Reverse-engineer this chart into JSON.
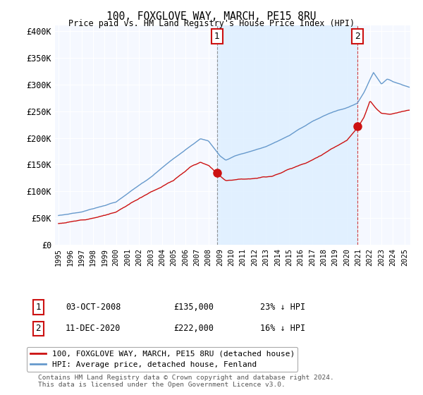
{
  "title": "100, FOXGLOVE WAY, MARCH, PE15 8RU",
  "subtitle": "Price paid vs. HM Land Registry's House Price Index (HPI)",
  "ylabel_ticks": [
    "£0",
    "£50K",
    "£100K",
    "£150K",
    "£200K",
    "£250K",
    "£300K",
    "£350K",
    "£400K"
  ],
  "ytick_values": [
    0,
    50000,
    100000,
    150000,
    200000,
    250000,
    300000,
    350000,
    400000
  ],
  "ylim": [
    0,
    410000
  ],
  "xlim_start": 1994.7,
  "xlim_end": 2025.5,
  "hpi_color": "#6699cc",
  "price_color": "#cc1111",
  "shade_color": "#ddeeff",
  "annotation_box_color": "#cc1111",
  "bg_color": "#f5f8ff",
  "sale1_x": 2008.75,
  "sale1_y": 135000,
  "sale2_x": 2020.92,
  "sale2_y": 222000,
  "legend_line1": "100, FOXGLOVE WAY, MARCH, PE15 8RU (detached house)",
  "legend_line2": "HPI: Average price, detached house, Fenland",
  "annot1_date": "03-OCT-2008",
  "annot1_price": "£135,000",
  "annot1_hpi": "23% ↓ HPI",
  "annot2_date": "11-DEC-2020",
  "annot2_price": "£222,000",
  "annot2_hpi": "16% ↓ HPI",
  "footer": "Contains HM Land Registry data © Crown copyright and database right 2024.\nThis data is licensed under the Open Government Licence v3.0."
}
